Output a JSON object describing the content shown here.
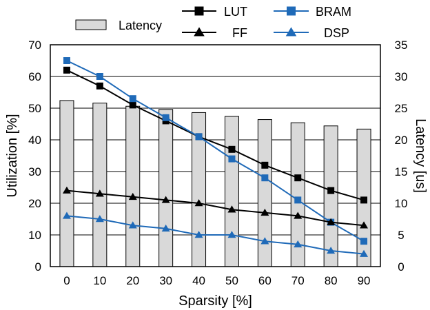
{
  "chart_data": {
    "type": "bar+line",
    "categories": [
      "0",
      "10",
      "20",
      "30",
      "40",
      "50",
      "60",
      "70",
      "80",
      "90"
    ],
    "xlabel": "Sparsity [%]",
    "ylabel": "Utilization [%]",
    "y2label": "Latency [us]",
    "ylim": [
      0,
      70
    ],
    "y2lim": [
      0,
      35
    ],
    "yticks": [
      0,
      10,
      20,
      30,
      40,
      50,
      60,
      70
    ],
    "y2ticks": [
      0,
      5,
      10,
      15,
      20,
      25,
      30,
      35
    ],
    "grid": true,
    "legend_position": "top",
    "bars": {
      "name": "Latency",
      "axis": "right",
      "color": "#d9d9d9",
      "values": [
        26.2,
        25.8,
        25.3,
        24.8,
        24.3,
        23.7,
        23.2,
        22.7,
        22.2,
        21.7
      ]
    },
    "series": [
      {
        "name": "LUT",
        "marker": "square",
        "color": "#000000",
        "values": [
          62,
          57,
          51,
          46,
          41,
          37,
          32,
          28,
          24,
          21
        ]
      },
      {
        "name": "BRAM",
        "marker": "square",
        "color": "#1f6ab8",
        "values": [
          65,
          60,
          53,
          47,
          41,
          34,
          28,
          21,
          14,
          8
        ]
      },
      {
        "name": "FF",
        "marker": "triangle",
        "color": "#000000",
        "values": [
          24,
          23,
          22,
          21,
          20,
          18,
          17,
          16,
          14,
          13
        ]
      },
      {
        "name": "DSP",
        "marker": "triangle",
        "color": "#1f6ab8",
        "values": [
          16,
          15,
          13,
          12,
          10,
          10,
          8,
          7,
          5,
          4
        ]
      }
    ]
  }
}
